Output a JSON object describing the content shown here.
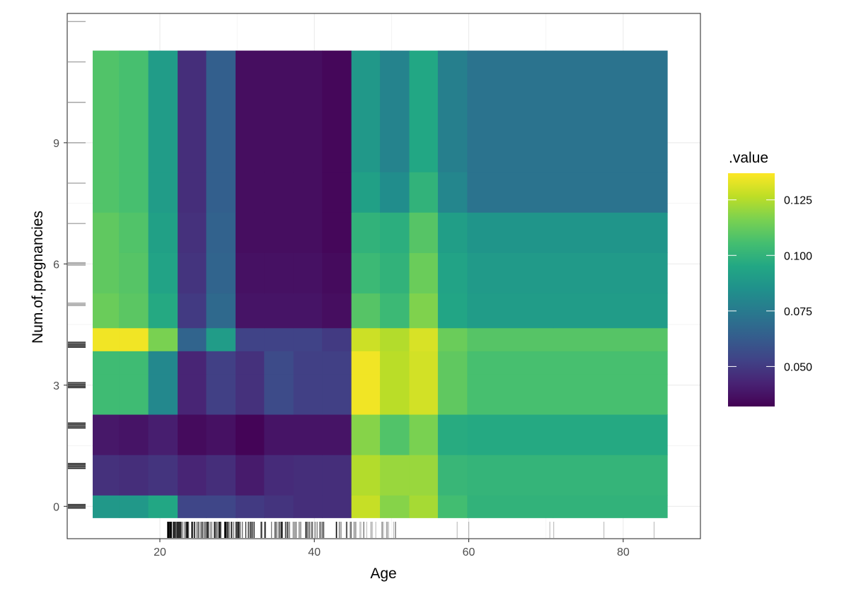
{
  "chart_data": {
    "type": "heatmap",
    "title": "",
    "xlabel": "Age",
    "ylabel": "Num.of.pregnancies",
    "xlim": [
      8,
      90
    ],
    "ylim": [
      -0.8,
      12.2
    ],
    "x_ticks": [
      {
        "value": 20,
        "label": "20"
      },
      {
        "value": 40,
        "label": "40"
      },
      {
        "value": 60,
        "label": "60"
      },
      {
        "value": 80,
        "label": "80"
      }
    ],
    "y_ticks": [
      {
        "value": 0,
        "label": "0"
      },
      {
        "value": 3,
        "label": "3"
      },
      {
        "value": 6,
        "label": "6"
      },
      {
        "value": 9,
        "label": "9"
      }
    ],
    "grid": true,
    "legend": {
      "title": ".value",
      "position": "right",
      "colormap": "viridis",
      "min": 0.032,
      "max": 0.137,
      "ticks": [
        {
          "value": 0.05,
          "label": "0.050"
        },
        {
          "value": 0.075,
          "label": "0.075"
        },
        {
          "value": 0.1,
          "label": "0.100"
        },
        {
          "value": 0.125,
          "label": "0.125"
        }
      ]
    },
    "x_bins": [
      [
        11.3,
        14.7
      ],
      [
        14.7,
        18.5
      ],
      [
        18.5,
        22.3
      ],
      [
        22.3,
        26.0
      ],
      [
        26.0,
        29.8
      ],
      [
        29.8,
        33.5
      ],
      [
        33.5,
        37.3
      ],
      [
        37.3,
        41.0
      ],
      [
        41.0,
        44.8
      ],
      [
        44.8,
        48.5
      ],
      [
        48.5,
        52.3
      ],
      [
        52.3,
        56.0
      ],
      [
        56.0,
        59.8
      ],
      [
        59.8,
        70.9
      ],
      [
        70.9,
        85.7
      ]
    ],
    "y_bins": [
      [
        -0.28,
        0.28
      ],
      [
        0.28,
        1.28
      ],
      [
        1.28,
        2.28
      ],
      [
        2.28,
        3.28
      ],
      [
        3.28,
        3.85
      ],
      [
        3.85,
        4.42
      ],
      [
        4.42,
        5.28
      ],
      [
        5.28,
        6.28
      ],
      [
        6.28,
        7.28
      ],
      [
        7.28,
        8.28
      ],
      [
        8.28,
        11.28
      ]
    ],
    "values": [
      [
        0.088,
        0.088,
        0.095,
        0.054,
        0.054,
        0.05,
        0.048,
        0.046,
        0.046,
        0.128,
        0.118,
        0.123,
        0.105,
        0.1,
        0.1
      ],
      [
        0.047,
        0.046,
        0.048,
        0.043,
        0.046,
        0.04,
        0.045,
        0.046,
        0.046,
        0.125,
        0.121,
        0.121,
        0.102,
        0.101,
        0.101
      ],
      [
        0.039,
        0.038,
        0.041,
        0.035,
        0.037,
        0.033,
        0.038,
        0.038,
        0.038,
        0.118,
        0.108,
        0.116,
        0.097,
        0.096,
        0.096
      ],
      [
        0.104,
        0.104,
        0.081,
        0.043,
        0.052,
        0.047,
        0.056,
        0.052,
        0.052,
        0.135,
        0.126,
        0.13,
        0.111,
        0.106,
        0.106
      ],
      [
        0.104,
        0.104,
        0.081,
        0.043,
        0.052,
        0.047,
        0.056,
        0.052,
        0.052,
        0.135,
        0.126,
        0.13,
        0.111,
        0.106,
        0.106
      ],
      [
        0.135,
        0.135,
        0.116,
        0.066,
        0.09,
        0.053,
        0.053,
        0.053,
        0.05,
        0.129,
        0.125,
        0.131,
        0.113,
        0.109,
        0.109
      ],
      [
        0.113,
        0.11,
        0.096,
        0.05,
        0.068,
        0.038,
        0.038,
        0.038,
        0.036,
        0.109,
        0.103,
        0.117,
        0.094,
        0.09,
        0.09
      ],
      [
        0.111,
        0.109,
        0.093,
        0.048,
        0.066,
        0.037,
        0.037,
        0.037,
        0.035,
        0.103,
        0.1,
        0.113,
        0.093,
        0.089,
        0.089
      ],
      [
        0.111,
        0.108,
        0.092,
        0.047,
        0.065,
        0.036,
        0.036,
        0.036,
        0.034,
        0.1,
        0.098,
        0.109,
        0.091,
        0.087,
        0.087
      ],
      [
        0.108,
        0.106,
        0.09,
        0.046,
        0.064,
        0.036,
        0.036,
        0.036,
        0.034,
        0.092,
        0.083,
        0.1,
        0.08,
        0.072,
        0.072
      ],
      [
        0.108,
        0.106,
        0.09,
        0.046,
        0.064,
        0.036,
        0.036,
        0.036,
        0.034,
        0.088,
        0.079,
        0.095,
        0.077,
        0.072,
        0.072
      ]
    ]
  }
}
